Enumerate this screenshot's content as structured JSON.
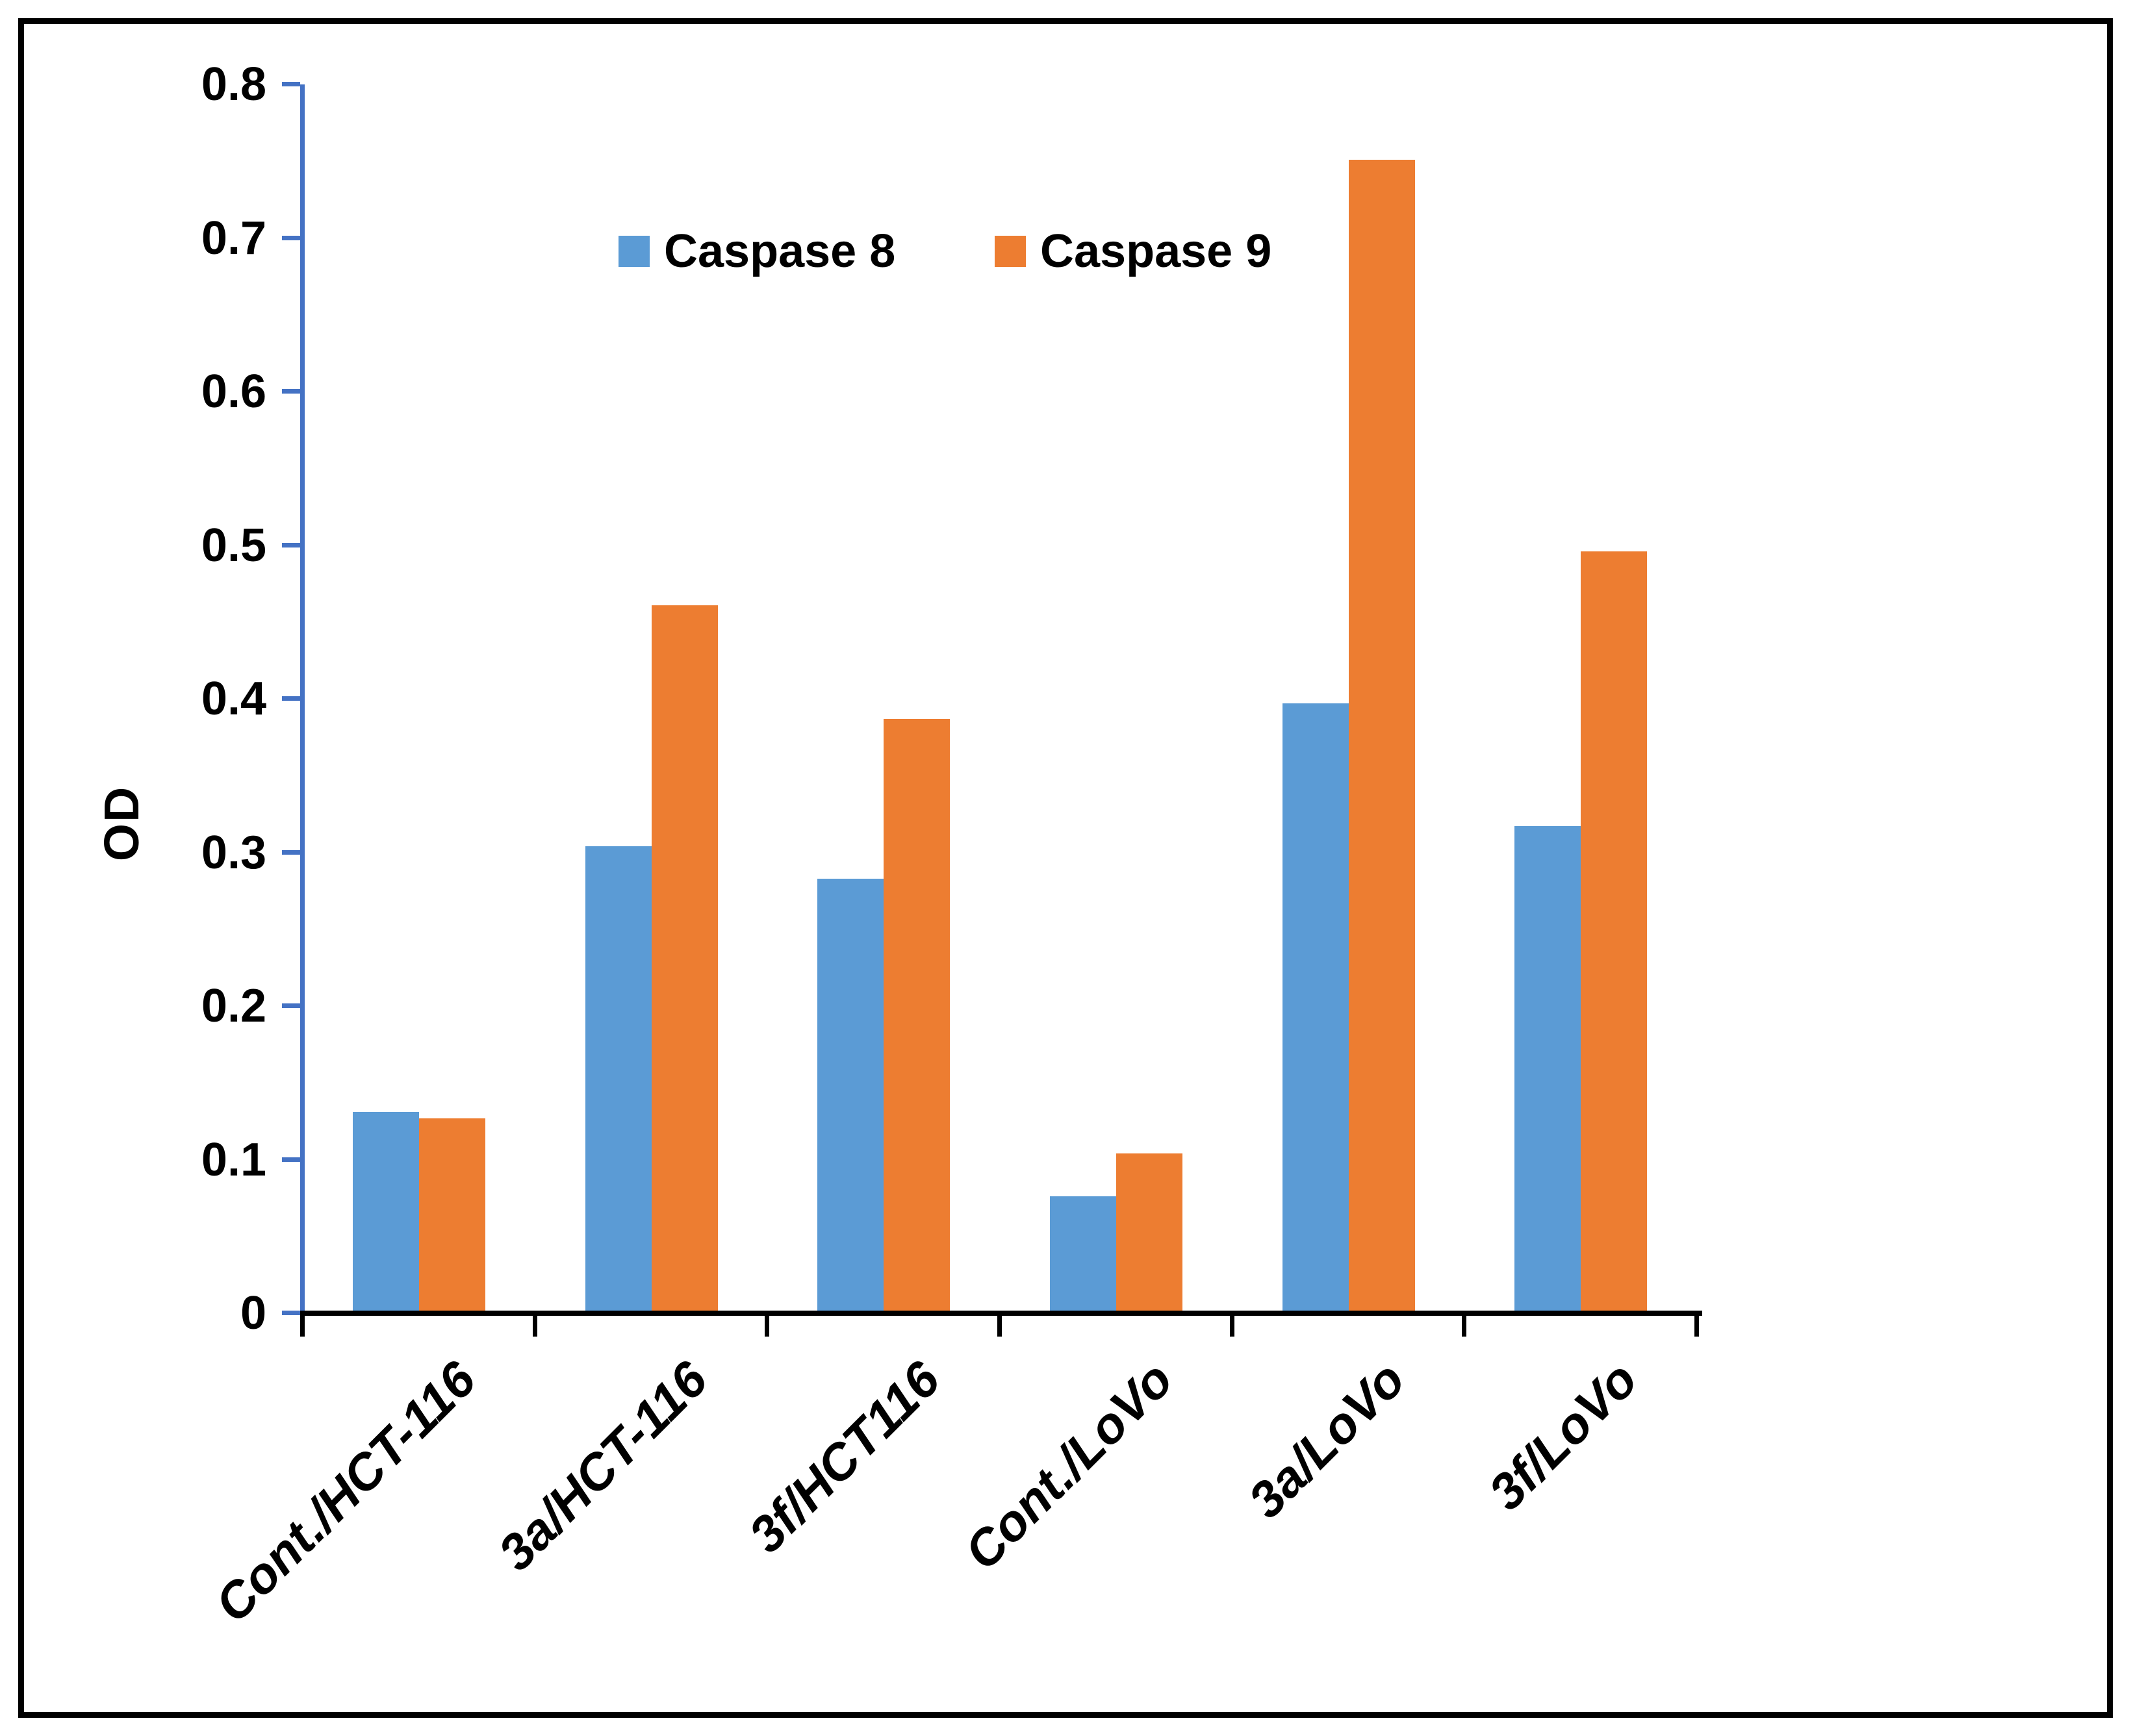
{
  "chart_data": {
    "type": "bar",
    "title": "",
    "categories": [
      "Cont./HCT-116",
      "3a/HCT-116",
      "3f/HCT116",
      "Cont./LoVo",
      "3a/LoVo",
      "3f/LoVo"
    ],
    "series": [
      {
        "name": "Caspase 8",
        "color": "#5B9BD5",
        "values": [
          0.131,
          0.304,
          0.283,
          0.076,
          0.397,
          0.317
        ]
      },
      {
        "name": "Caspase 9",
        "color": "#ED7D31",
        "values": [
          0.127,
          0.461,
          0.387,
          0.104,
          0.751,
          0.496
        ]
      }
    ],
    "xlabel": "",
    "ylabel": "OD",
    "ylim": [
      0,
      0.8
    ],
    "ytick_step": 0.1,
    "yticks": [
      "0",
      "0.1",
      "0.2",
      "0.3",
      "0.4",
      "0.5",
      "0.6",
      "0.7",
      "0.8"
    ],
    "grid": false,
    "legend_position": "top-center",
    "colors": {
      "y_axis": "#4472C4",
      "x_axis": "#000000",
      "text": "#000000",
      "frame_border": "#000000",
      "background": "#FFFFFF"
    }
  }
}
